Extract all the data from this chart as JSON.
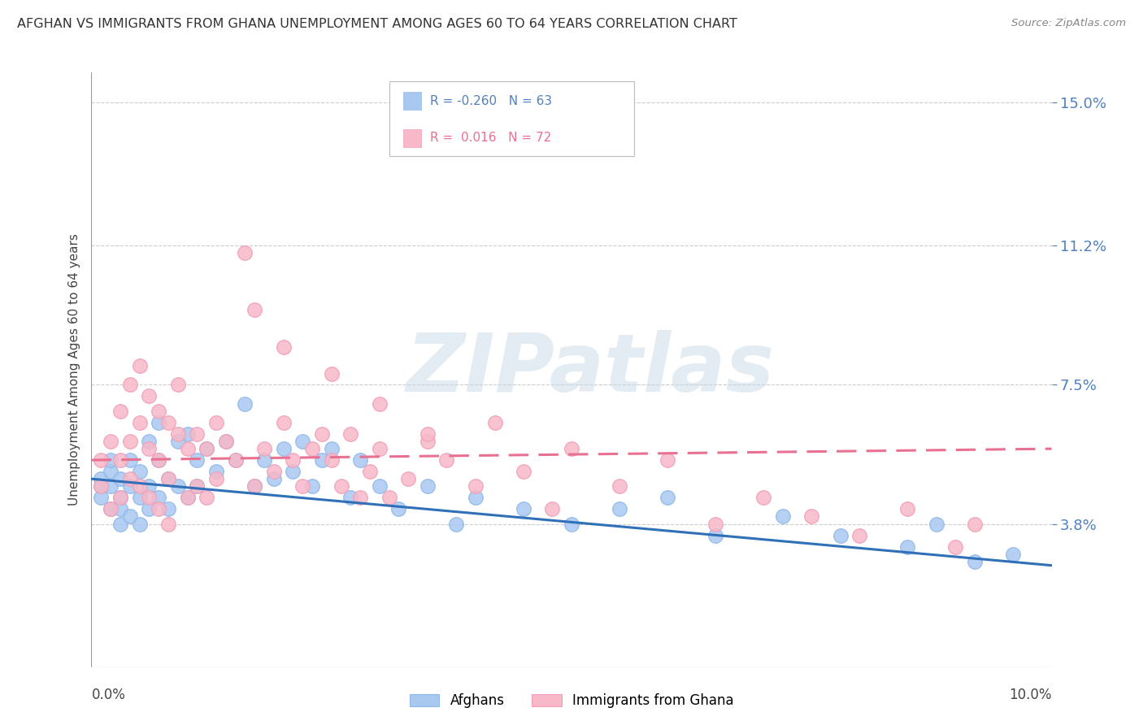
{
  "title": "AFGHAN VS IMMIGRANTS FROM GHANA UNEMPLOYMENT AMONG AGES 60 TO 64 YEARS CORRELATION CHART",
  "source": "Source: ZipAtlas.com",
  "ylabel": "Unemployment Among Ages 60 to 64 years",
  "ytick_vals": [
    0.0,
    0.038,
    0.075,
    0.112,
    0.15
  ],
  "ytick_labels": [
    "",
    "3.8%",
    "7.5%",
    "11.2%",
    "15.0%"
  ],
  "xmin": 0.0,
  "xmax": 0.1,
  "ymin": 0.0,
  "ymax": 0.158,
  "afghan_color": "#a8c8f0",
  "afghan_edge_color": "#90b8e8",
  "ghana_color": "#f8b8c8",
  "ghana_edge_color": "#f0a0b8",
  "afghan_line_color": "#3070b8",
  "ghana_line_color": "#e87090",
  "afghan_R": -0.26,
  "afghan_N": 63,
  "ghana_R": 0.016,
  "ghana_N": 72,
  "watermark": "ZIPatlas",
  "legend_label_afghan": "Afghans",
  "legend_label_ghana": "Immigrants from Ghana",
  "afghan_line_x0": 0.0,
  "afghan_line_y0": 0.05,
  "afghan_line_x1": 0.1,
  "afghan_line_y1": 0.027,
  "ghana_line_x0": 0.0,
  "ghana_line_y0": 0.055,
  "ghana_line_x1": 0.1,
  "ghana_line_y1": 0.058,
  "afghan_x": [
    0.001,
    0.001,
    0.001,
    0.002,
    0.002,
    0.002,
    0.002,
    0.003,
    0.003,
    0.003,
    0.003,
    0.004,
    0.004,
    0.004,
    0.005,
    0.005,
    0.005,
    0.006,
    0.006,
    0.006,
    0.007,
    0.007,
    0.007,
    0.008,
    0.008,
    0.009,
    0.009,
    0.01,
    0.01,
    0.011,
    0.011,
    0.012,
    0.013,
    0.014,
    0.015,
    0.016,
    0.017,
    0.018,
    0.019,
    0.02,
    0.021,
    0.022,
    0.023,
    0.024,
    0.025,
    0.027,
    0.028,
    0.03,
    0.032,
    0.035,
    0.038,
    0.04,
    0.045,
    0.05,
    0.055,
    0.06,
    0.065,
    0.072,
    0.078,
    0.085,
    0.088,
    0.092,
    0.096
  ],
  "afghan_y": [
    0.05,
    0.048,
    0.045,
    0.052,
    0.048,
    0.055,
    0.042,
    0.05,
    0.045,
    0.042,
    0.038,
    0.048,
    0.055,
    0.04,
    0.052,
    0.045,
    0.038,
    0.06,
    0.042,
    0.048,
    0.065,
    0.055,
    0.045,
    0.05,
    0.042,
    0.06,
    0.048,
    0.062,
    0.045,
    0.055,
    0.048,
    0.058,
    0.052,
    0.06,
    0.055,
    0.07,
    0.048,
    0.055,
    0.05,
    0.058,
    0.052,
    0.06,
    0.048,
    0.055,
    0.058,
    0.045,
    0.055,
    0.048,
    0.042,
    0.048,
    0.038,
    0.045,
    0.042,
    0.038,
    0.042,
    0.045,
    0.035,
    0.04,
    0.035,
    0.032,
    0.038,
    0.028,
    0.03
  ],
  "ghana_x": [
    0.001,
    0.001,
    0.002,
    0.002,
    0.003,
    0.003,
    0.003,
    0.004,
    0.004,
    0.004,
    0.005,
    0.005,
    0.005,
    0.006,
    0.006,
    0.006,
    0.007,
    0.007,
    0.007,
    0.008,
    0.008,
    0.008,
    0.009,
    0.009,
    0.01,
    0.01,
    0.011,
    0.011,
    0.012,
    0.012,
    0.013,
    0.013,
    0.014,
    0.015,
    0.016,
    0.017,
    0.018,
    0.019,
    0.02,
    0.021,
    0.022,
    0.023,
    0.024,
    0.025,
    0.026,
    0.027,
    0.028,
    0.029,
    0.03,
    0.031,
    0.033,
    0.035,
    0.037,
    0.04,
    0.042,
    0.045,
    0.048,
    0.05,
    0.055,
    0.06,
    0.065,
    0.07,
    0.075,
    0.08,
    0.085,
    0.09,
    0.092,
    0.017,
    0.02,
    0.025,
    0.03,
    0.035
  ],
  "ghana_y": [
    0.055,
    0.048,
    0.06,
    0.042,
    0.068,
    0.055,
    0.045,
    0.075,
    0.06,
    0.05,
    0.08,
    0.065,
    0.048,
    0.072,
    0.058,
    0.045,
    0.068,
    0.055,
    0.042,
    0.065,
    0.05,
    0.038,
    0.075,
    0.062,
    0.058,
    0.045,
    0.062,
    0.048,
    0.058,
    0.045,
    0.065,
    0.05,
    0.06,
    0.055,
    0.11,
    0.048,
    0.058,
    0.052,
    0.065,
    0.055,
    0.048,
    0.058,
    0.062,
    0.055,
    0.048,
    0.062,
    0.045,
    0.052,
    0.058,
    0.045,
    0.05,
    0.06,
    0.055,
    0.048,
    0.065,
    0.052,
    0.042,
    0.058,
    0.048,
    0.055,
    0.038,
    0.045,
    0.04,
    0.035,
    0.042,
    0.032,
    0.038,
    0.095,
    0.085,
    0.078,
    0.07,
    0.062
  ]
}
